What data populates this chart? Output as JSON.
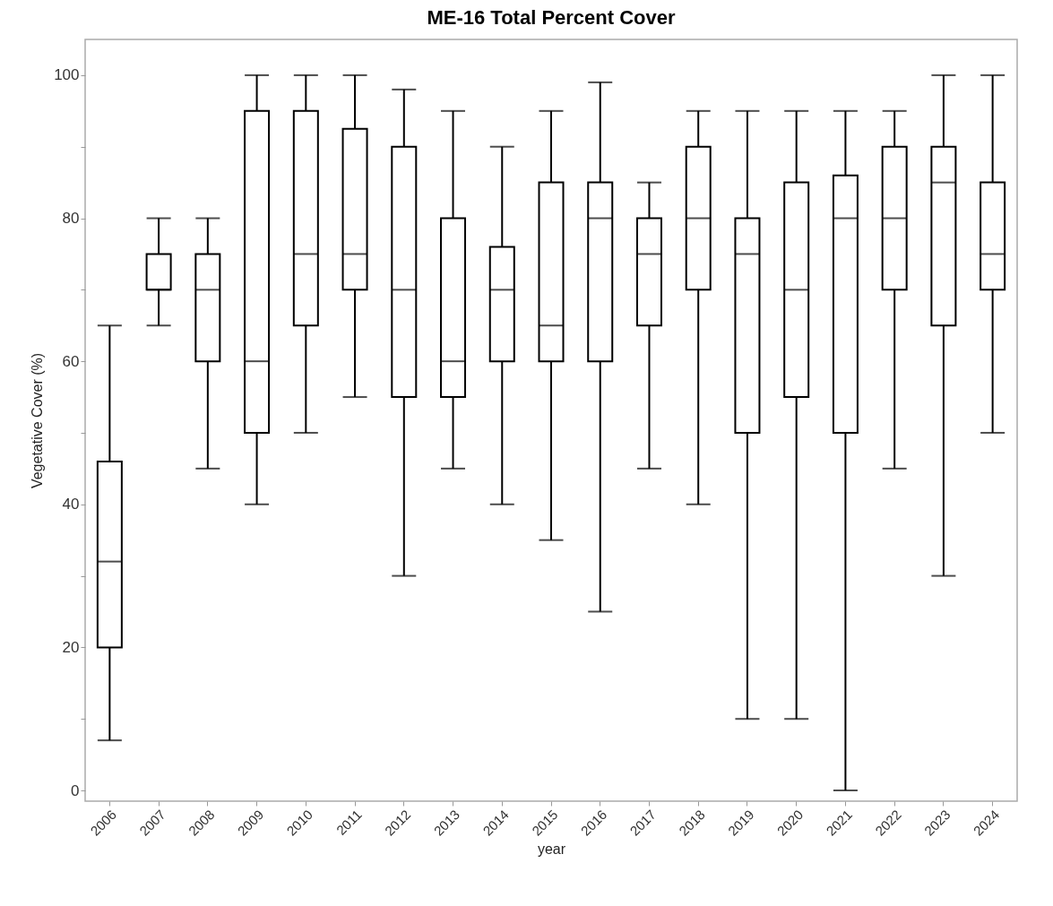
{
  "chart_data": {
    "type": "box",
    "title": "ME-16 Total Percent Cover",
    "xlabel": "year",
    "ylabel": "Vegetative Cover (%)",
    "categories": [
      "2006",
      "2007",
      "2008",
      "2009",
      "2010",
      "2011",
      "2012",
      "2013",
      "2014",
      "2015",
      "2016",
      "2017",
      "2018",
      "2019",
      "2020",
      "2021",
      "2022",
      "2023",
      "2024"
    ],
    "boxes": [
      {
        "low": 7,
        "q1": 20,
        "median": 32,
        "q3": 46,
        "high": 65
      },
      {
        "low": 65,
        "q1": 70,
        "median": 70,
        "q3": 75,
        "high": 80
      },
      {
        "low": 45,
        "q1": 60,
        "median": 70,
        "q3": 75,
        "high": 80
      },
      {
        "low": 40,
        "q1": 50,
        "median": 60,
        "q3": 95,
        "high": 100
      },
      {
        "low": 50,
        "q1": 65,
        "median": 75,
        "q3": 95,
        "high": 100
      },
      {
        "low": 55,
        "q1": 70,
        "median": 75,
        "q3": 92.5,
        "high": 100
      },
      {
        "low": 30,
        "q1": 55,
        "median": 70,
        "q3": 90,
        "high": 98
      },
      {
        "low": 45,
        "q1": 55,
        "median": 60,
        "q3": 80,
        "high": 95
      },
      {
        "low": 40,
        "q1": 60,
        "median": 70,
        "q3": 76,
        "high": 90
      },
      {
        "low": 35,
        "q1": 60,
        "median": 65,
        "q3": 85,
        "high": 95
      },
      {
        "low": 25,
        "q1": 60,
        "median": 80,
        "q3": 85,
        "high": 99
      },
      {
        "low": 45,
        "q1": 65,
        "median": 75,
        "q3": 80,
        "high": 85
      },
      {
        "low": 40,
        "q1": 70,
        "median": 80,
        "q3": 90,
        "high": 95
      },
      {
        "low": 10,
        "q1": 50,
        "median": 75,
        "q3": 80,
        "high": 95
      },
      {
        "low": 10,
        "q1": 55,
        "median": 70,
        "q3": 85,
        "high": 95
      },
      {
        "low": 0,
        "q1": 50,
        "median": 80,
        "q3": 86,
        "high": 95
      },
      {
        "low": 45,
        "q1": 70,
        "median": 80,
        "q3": 90,
        "high": 95
      },
      {
        "low": 30,
        "q1": 65,
        "median": 85,
        "q3": 90,
        "high": 100
      },
      {
        "low": 50,
        "q1": 70,
        "median": 75,
        "q3": 85,
        "high": 100
      }
    ],
    "color": "#000000",
    "ylim": [
      -1.5,
      105
    ],
    "yticks": [
      0,
      {
        "value": 10,
        "label": null
      },
      20,
      {
        "value": 30,
        "label": null
      },
      40,
      {
        "value": 50,
        "label": null
      },
      60,
      {
        "value": 70,
        "label": null
      },
      80,
      {
        "value": 90,
        "label": null
      },
      100
    ],
    "grid": false
  }
}
